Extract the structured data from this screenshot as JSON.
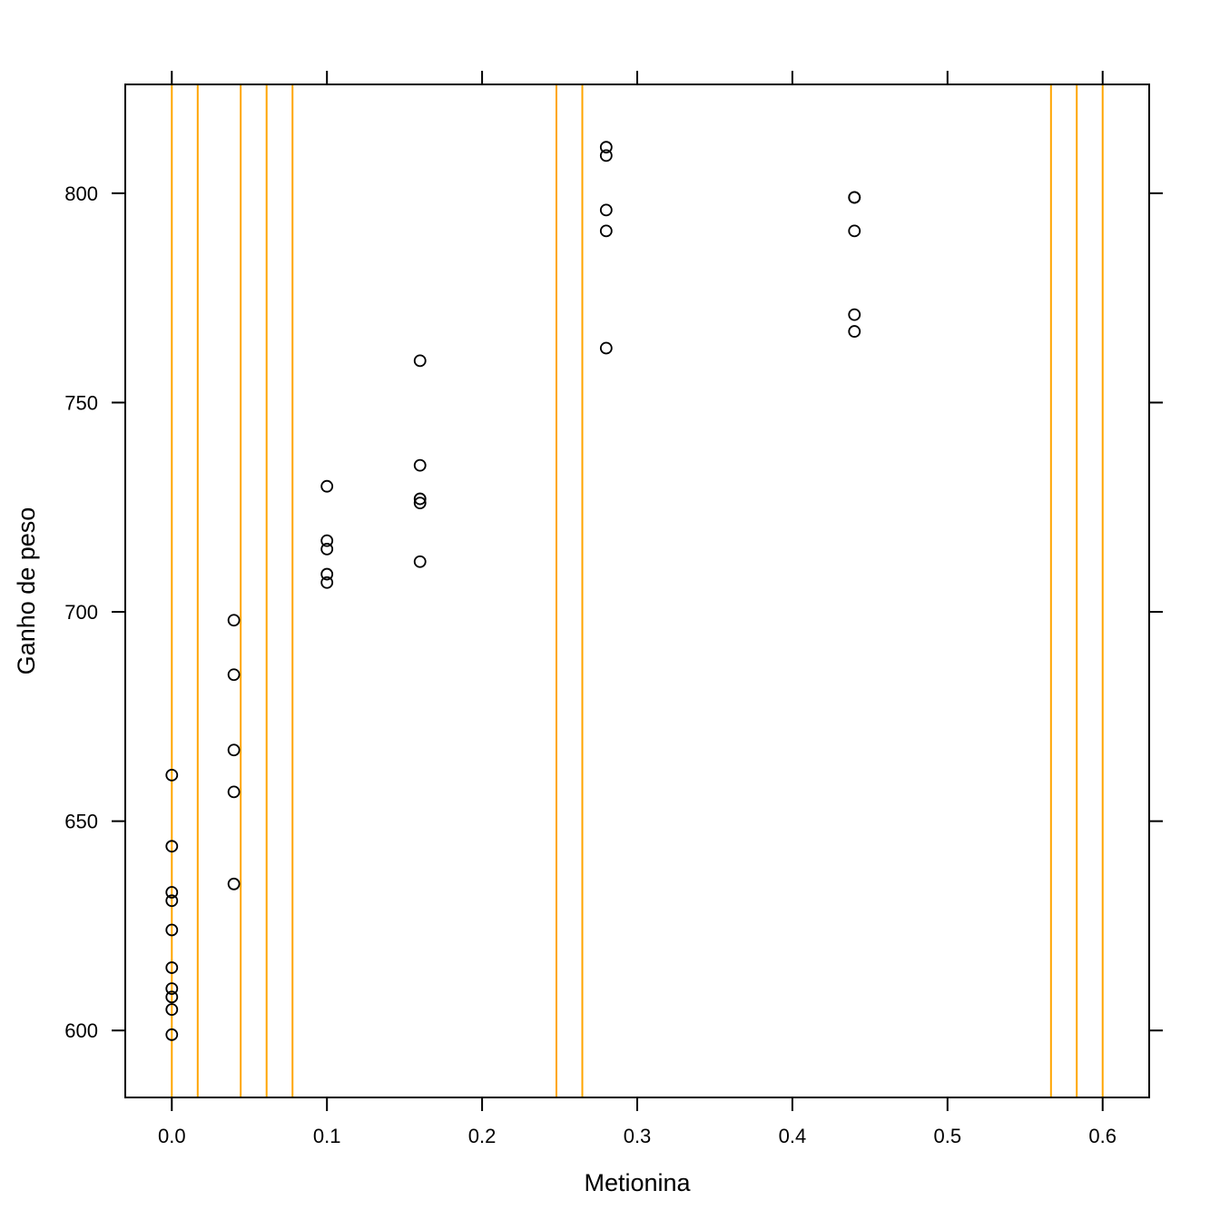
{
  "chart_data": {
    "type": "scatter",
    "xlabel": "Metionina",
    "ylabel": "Ganho de peso",
    "xlim": [
      -0.03,
      0.63
    ],
    "ylim": [
      584,
      826
    ],
    "xticks": [
      0.0,
      0.1,
      0.2,
      0.3,
      0.4,
      0.5,
      0.6
    ],
    "xtick_labels": [
      "0.0",
      "0.1",
      "0.2",
      "0.3",
      "0.4",
      "0.5",
      "0.6"
    ],
    "yticks": [
      600,
      650,
      700,
      750,
      800
    ],
    "ytick_labels": [
      "600",
      "650",
      "700",
      "750",
      "800"
    ],
    "grid": false,
    "vlines": [
      0.0,
      0.0167,
      0.0444,
      0.0611,
      0.0778,
      0.2479,
      0.2646,
      0.5667,
      0.5833,
      0.6
    ],
    "vline_color": "#FFA500",
    "point_color": "#000000",
    "points": [
      {
        "x": 0.0,
        "y": 661
      },
      {
        "x": 0.0,
        "y": 644
      },
      {
        "x": 0.0,
        "y": 633
      },
      {
        "x": 0.0,
        "y": 631
      },
      {
        "x": 0.0,
        "y": 624
      },
      {
        "x": 0.0,
        "y": 615
      },
      {
        "x": 0.0,
        "y": 610
      },
      {
        "x": 0.0,
        "y": 608
      },
      {
        "x": 0.0,
        "y": 605
      },
      {
        "x": 0.0,
        "y": 599
      },
      {
        "x": 0.04,
        "y": 698
      },
      {
        "x": 0.04,
        "y": 685
      },
      {
        "x": 0.04,
        "y": 667
      },
      {
        "x": 0.04,
        "y": 657
      },
      {
        "x": 0.04,
        "y": 635
      },
      {
        "x": 0.1,
        "y": 730
      },
      {
        "x": 0.1,
        "y": 717
      },
      {
        "x": 0.1,
        "y": 715
      },
      {
        "x": 0.1,
        "y": 709
      },
      {
        "x": 0.1,
        "y": 707
      },
      {
        "x": 0.16,
        "y": 760
      },
      {
        "x": 0.16,
        "y": 735
      },
      {
        "x": 0.16,
        "y": 727
      },
      {
        "x": 0.16,
        "y": 726
      },
      {
        "x": 0.16,
        "y": 712
      },
      {
        "x": 0.28,
        "y": 811
      },
      {
        "x": 0.28,
        "y": 809
      },
      {
        "x": 0.28,
        "y": 796
      },
      {
        "x": 0.28,
        "y": 791
      },
      {
        "x": 0.28,
        "y": 763
      },
      {
        "x": 0.44,
        "y": 799
      },
      {
        "x": 0.44,
        "y": 799
      },
      {
        "x": 0.44,
        "y": 791
      },
      {
        "x": 0.44,
        "y": 771
      },
      {
        "x": 0.44,
        "y": 767
      }
    ]
  }
}
